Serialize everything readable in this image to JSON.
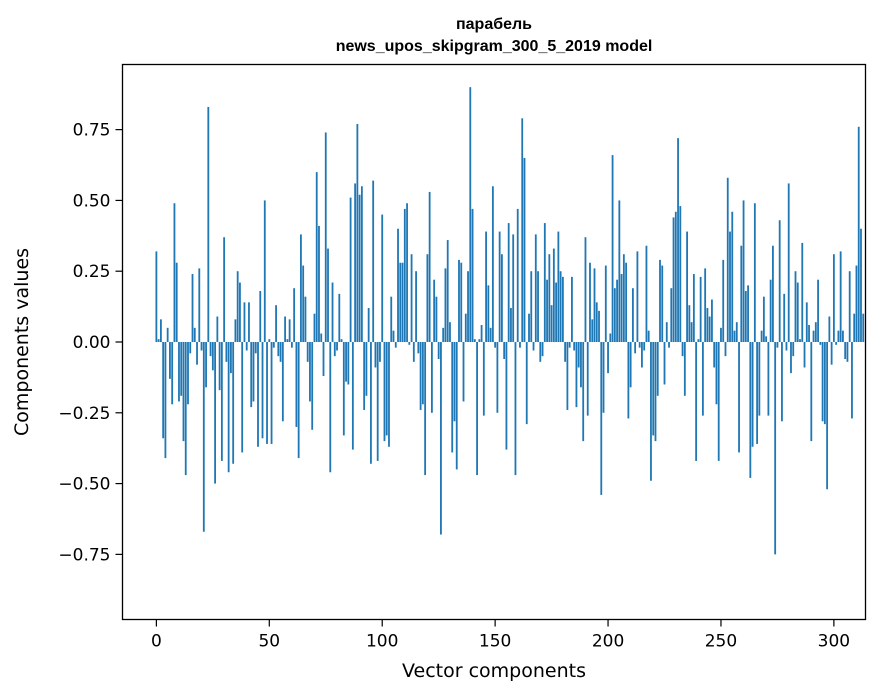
{
  "chart_data": {
    "type": "bar",
    "title_line1": "парабель",
    "title_line2": "news_upos_skipgram_300_5_2019 model",
    "xlabel": "Vector components",
    "ylabel": "Components values",
    "xlim": [
      -15,
      314
    ],
    "ylim": [
      -0.98,
      0.98
    ],
    "xticks": [
      0,
      50,
      100,
      150,
      200,
      250,
      300
    ],
    "xtick_labels": [
      "0",
      "50",
      "100",
      "150",
      "200",
      "250",
      "300"
    ],
    "yticks": [
      -0.75,
      -0.5,
      -0.25,
      0.0,
      0.25,
      0.5,
      0.75
    ],
    "ytick_labels": [
      "−0.75",
      "−0.50",
      "−0.25",
      "0.00",
      "0.25",
      "0.50",
      "0.75"
    ],
    "bar_color": "#1f77b4",
    "x": "0..299",
    "values": [
      0.32,
      0.01,
      0.08,
      -0.34,
      -0.41,
      0.05,
      -0.13,
      -0.22,
      0.49,
      0.28,
      -0.21,
      -0.19,
      -0.35,
      -0.47,
      -0.22,
      -0.04,
      0.24,
      0.05,
      -0.08,
      0.26,
      -0.03,
      -0.67,
      -0.16,
      0.83,
      -0.05,
      -0.1,
      -0.5,
      0.09,
      -0.17,
      -0.42,
      0.37,
      -0.07,
      -0.46,
      -0.11,
      -0.43,
      0.08,
      0.25,
      0.21,
      -0.39,
      0.14,
      -0.03,
      0.14,
      -0.23,
      -0.21,
      -0.04,
      -0.37,
      0.18,
      -0.34,
      0.5,
      -0.36,
      0.01,
      -0.36,
      -0.02,
      0.13,
      -0.05,
      -0.07,
      -0.28,
      0.09,
      0.01,
      0.08,
      -0.02,
      0.19,
      -0.3,
      -0.41,
      0.38,
      0.27,
      0.16,
      -0.07,
      -0.21,
      -0.31,
      0.1,
      0.6,
      0.41,
      0.03,
      -0.12,
      0.74,
      0.33,
      -0.46,
      0.21,
      -0.05,
      -0.03,
      0.17,
      0.01,
      -0.33,
      -0.14,
      -0.15,
      0.51,
      -0.38,
      0.56,
      0.77,
      0.52,
      0.55,
      -0.24,
      -0.19,
      0.12,
      -0.43,
      0.57,
      -0.09,
      -0.42,
      -0.07,
      0.45,
      -0.35,
      -0.33,
      -0.37,
      0.16,
      0.04,
      -0.02,
      0.4,
      0.28,
      0.28,
      0.47,
      0.49,
      -0.01,
      0.31,
      -0.07,
      0.25,
      -0.04,
      -0.24,
      -0.22,
      -0.47,
      0.31,
      0.53,
      -0.25,
      0.22,
      0.16,
      -0.06,
      -0.68,
      0.05,
      0.26,
      0.36,
      0.07,
      -0.39,
      -0.28,
      -0.45,
      0.29,
      0.28,
      -0.21,
      0.1,
      0.25,
      0.9,
      0.47,
      0.01,
      -0.47,
      0.01,
      0.06,
      -0.26,
      0.39,
      0.2,
      0.05,
      0.55,
      -0.02,
      -0.25,
      0.39,
      0.31,
      -0.06,
      -0.38,
      0.42,
      0.12,
      0.38,
      -0.47,
      0.47,
      -0.02,
      0.79,
      0.65,
      -0.29,
      0.1,
      0.25,
      -0.03,
      0.38,
      0.25,
      -0.07,
      -0.05,
      0.42,
      0.22,
      0.31,
      0.13,
      0.33,
      0.21,
      0.39,
      0.25,
      0.23,
      -0.07,
      -0.24,
      -0.02,
      0.23,
      -0.03,
      -0.23,
      -0.09,
      -0.16,
      -0.35,
      0.37,
      -0.26,
      0.28,
      0.08,
      0.26,
      0.14,
      0.11,
      -0.54,
      -0.25,
      0.27,
      -0.11,
      0.03,
      0.66,
      0.19,
      0.22,
      0.5,
      0.24,
      0.31,
      0.28,
      -0.27,
      -0.16,
      0.19,
      -0.04,
      0.32,
      -0.02,
      -0.09,
      -0.03,
      0.34,
      0.04,
      -0.49,
      -0.33,
      -0.35,
      -0.19,
      0.29,
      0.27,
      -0.15,
      0.07,
      -0.02,
      0.19,
      0.44,
      0.46,
      0.72,
      0.48,
      -0.05,
      -0.19,
      0.39,
      0.13,
      0.07,
      0.24,
      -0.42,
      0.01,
      0.23,
      -0.26,
      0.26,
      0.12,
      0.09,
      0.15,
      -0.09,
      -0.22,
      -0.42,
      0.05,
      0.29,
      -0.05,
      0.58,
      0.39,
      0.46,
      0.04,
      0.07,
      -0.39,
      0.34,
      0.5,
      0.18,
      0.2,
      -0.48,
      -0.37,
      0.49,
      -0.36,
      -0.26,
      0.04,
      0.16,
      0.02,
      -0.26,
      0.22,
      0.34,
      -0.75,
      -0.02,
      0.43,
      -0.28,
      0.17,
      -0.03,
      0.56,
      -0.11,
      -0.05,
      0.25,
      0.21,
      0.01,
      0.35,
      -0.09,
      0.14,
      0.06,
      -0.35,
      0.04,
      0.07,
      0.22,
      -0.01,
      -0.28,
      -0.29,
      -0.52,
      0.09,
      -0.08,
      0.31,
      -0.01,
      0.04,
      0.32,
      0.04,
      -0.06,
      -0.07,
      0.25,
      -0.27,
      0.1,
      0.27,
      0.76,
      0.4,
      0.1
    ],
    "index_annotations": {
      "0": "0.32"
    }
  }
}
